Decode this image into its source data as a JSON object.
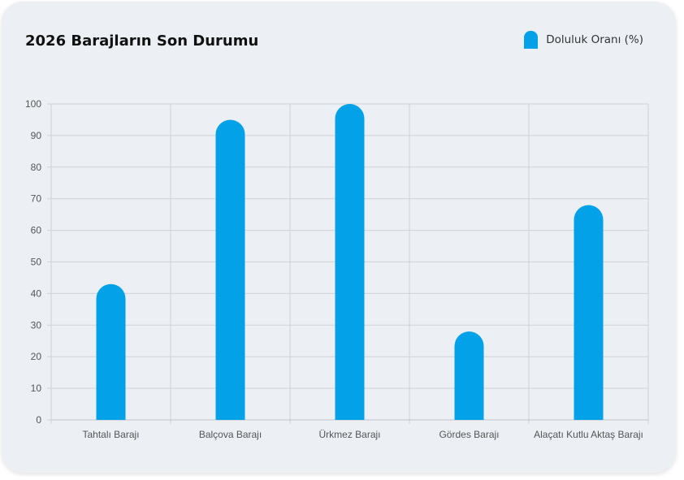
{
  "chart_data": {
    "type": "bar",
    "title": "2026 Barajların Son Durumu",
    "categories": [
      "Tahtalı Barajı",
      "Balçova Barajı",
      "Ürkmez Barajı",
      "Gördes Barajı",
      "Alaçatı Kutlu Aktaş Barajı"
    ],
    "series": [
      {
        "name": "Doluluk Oranı (%)",
        "values": [
          43,
          95,
          100,
          28,
          68
        ],
        "color": "#03a2e8"
      }
    ],
    "xlabel": "",
    "ylabel": "",
    "ylim": [
      0,
      100
    ],
    "yticks": [
      0,
      10,
      20,
      30,
      40,
      50,
      60,
      70,
      80,
      90,
      100
    ],
    "grid": true,
    "legend_position": "top-right"
  }
}
